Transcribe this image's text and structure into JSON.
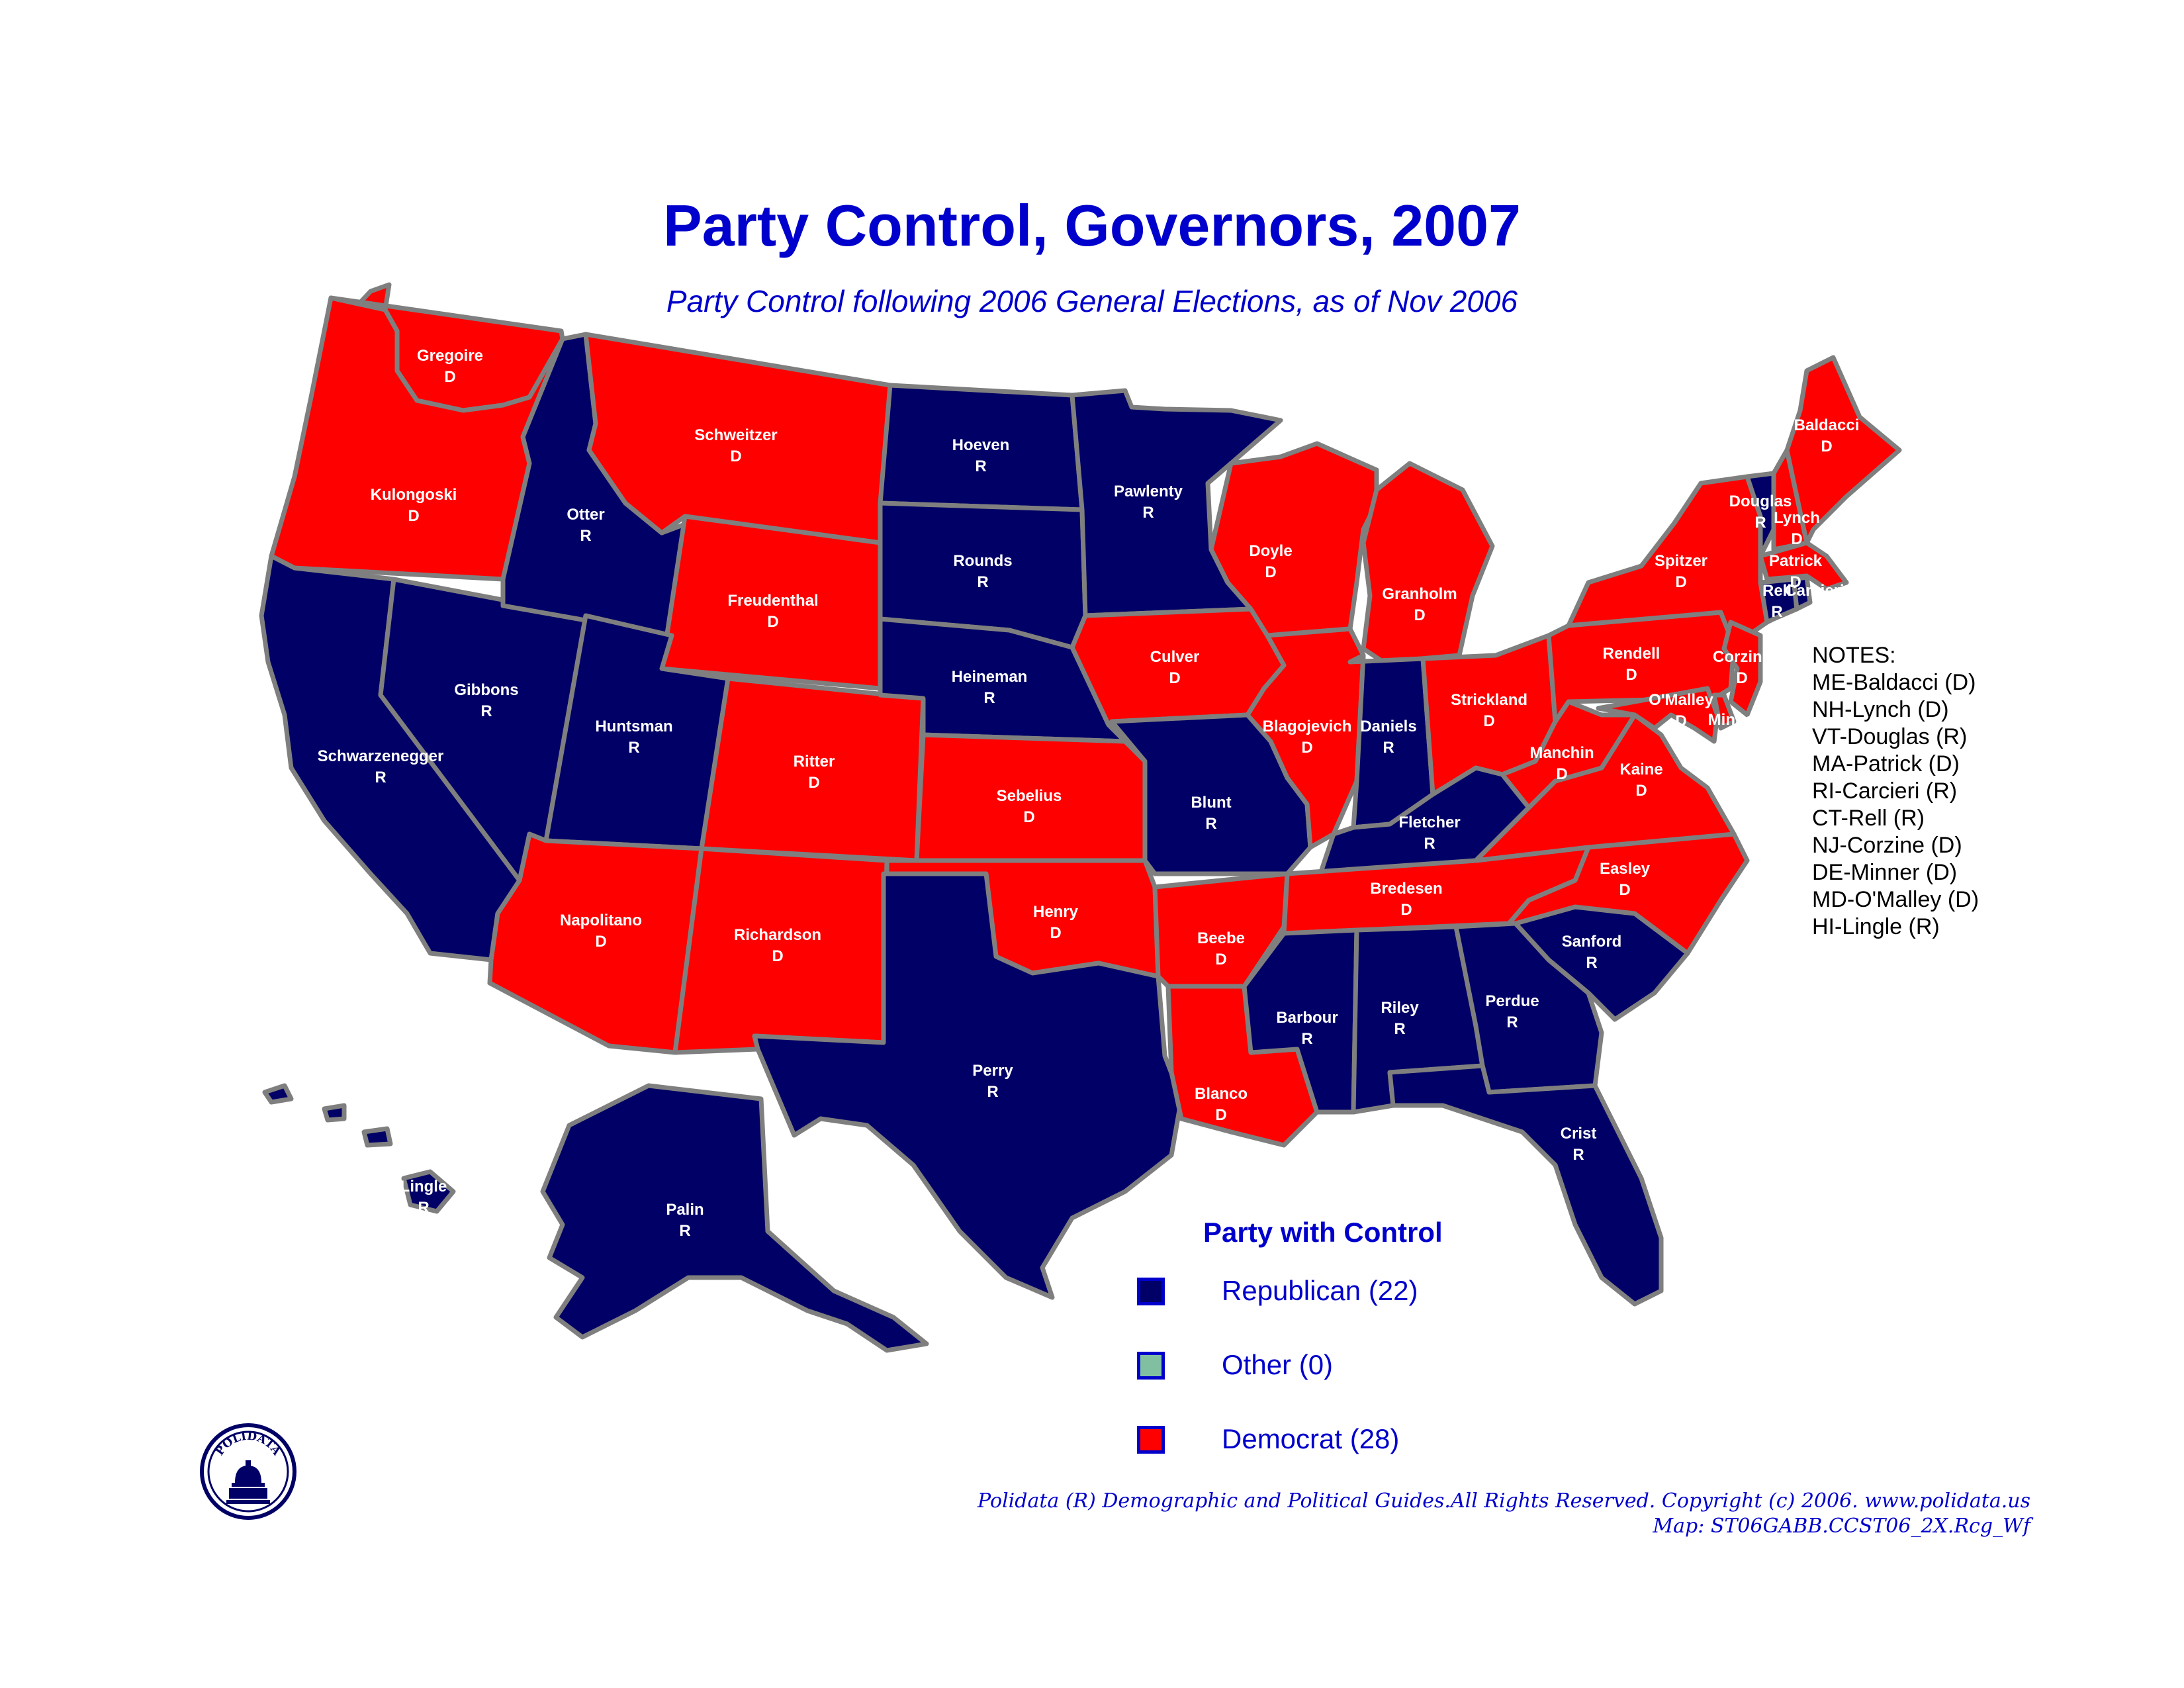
{
  "title": "Party Control, Governors, 2007",
  "subtitle": "Party Control following 2006 General Elections, as of Nov 2006",
  "colors": {
    "republican": "#000066",
    "democrat": "#ff0000",
    "other": "#80c0a0",
    "border": "#7f7f7f",
    "text_accent": "#0000cc"
  },
  "states": [
    {
      "id": "WA",
      "governor": "Gregoire",
      "party": "D"
    },
    {
      "id": "OR",
      "governor": "Kulongoski",
      "party": "D"
    },
    {
      "id": "CA",
      "governor": "Schwarzenegger",
      "party": "R"
    },
    {
      "id": "NV",
      "governor": "Gibbons",
      "party": "R"
    },
    {
      "id": "ID",
      "governor": "Otter",
      "party": "R"
    },
    {
      "id": "MT",
      "governor": "Schweitzer",
      "party": "D"
    },
    {
      "id": "WY",
      "governor": "Freudenthal",
      "party": "D"
    },
    {
      "id": "UT",
      "governor": "Huntsman",
      "party": "R"
    },
    {
      "id": "CO",
      "governor": "Ritter",
      "party": "D"
    },
    {
      "id": "AZ",
      "governor": "Napolitano",
      "party": "D"
    },
    {
      "id": "NM",
      "governor": "Richardson",
      "party": "D"
    },
    {
      "id": "ND",
      "governor": "Hoeven",
      "party": "R"
    },
    {
      "id": "SD",
      "governor": "Rounds",
      "party": "R"
    },
    {
      "id": "NE",
      "governor": "Heineman",
      "party": "R"
    },
    {
      "id": "KS",
      "governor": "Sebelius",
      "party": "D"
    },
    {
      "id": "OK",
      "governor": "Henry",
      "party": "D"
    },
    {
      "id": "TX",
      "governor": "Perry",
      "party": "R"
    },
    {
      "id": "MN",
      "governor": "Pawlenty",
      "party": "R"
    },
    {
      "id": "IA",
      "governor": "Culver",
      "party": "D"
    },
    {
      "id": "MO",
      "governor": "Blunt",
      "party": "R"
    },
    {
      "id": "AR",
      "governor": "Beebe",
      "party": "D"
    },
    {
      "id": "LA",
      "governor": "Blanco",
      "party": "D"
    },
    {
      "id": "WI",
      "governor": "Doyle",
      "party": "D"
    },
    {
      "id": "IL",
      "governor": "Blagojevich",
      "party": "D"
    },
    {
      "id": "MI",
      "governor": "Granholm",
      "party": "D"
    },
    {
      "id": "IN",
      "governor": "Daniels",
      "party": "R"
    },
    {
      "id": "OH",
      "governor": "Strickland",
      "party": "D"
    },
    {
      "id": "KY",
      "governor": "Fletcher",
      "party": "R"
    },
    {
      "id": "TN",
      "governor": "Bredesen",
      "party": "D"
    },
    {
      "id": "MS",
      "governor": "Barbour",
      "party": "R"
    },
    {
      "id": "AL",
      "governor": "Riley",
      "party": "R"
    },
    {
      "id": "GA",
      "governor": "Perdue",
      "party": "R"
    },
    {
      "id": "FL",
      "governor": "Crist",
      "party": "R"
    },
    {
      "id": "SC",
      "governor": "Sanford",
      "party": "R"
    },
    {
      "id": "NC",
      "governor": "Easley",
      "party": "D"
    },
    {
      "id": "VA",
      "governor": "Kaine",
      "party": "D"
    },
    {
      "id": "WV",
      "governor": "Manchin",
      "party": "D"
    },
    {
      "id": "PA",
      "governor": "Rendell",
      "party": "D"
    },
    {
      "id": "NY",
      "governor": "Spitzer",
      "party": "D"
    },
    {
      "id": "VT",
      "governor": "Douglas",
      "party": "R"
    },
    {
      "id": "NH",
      "governor": "Lynch",
      "party": "D"
    },
    {
      "id": "ME",
      "governor": "Baldacci",
      "party": "D"
    },
    {
      "id": "MA",
      "governor": "Patrick",
      "party": "D"
    },
    {
      "id": "CT",
      "governor": "Rell",
      "party": "R"
    },
    {
      "id": "RI",
      "governor": "Carcieri",
      "party": "R"
    },
    {
      "id": "NJ",
      "governor": "Corzine",
      "party": "D"
    },
    {
      "id": "MD",
      "governor": "O'Malley",
      "party": "D"
    },
    {
      "id": "DE",
      "governor": "Minner",
      "party": "D"
    },
    {
      "id": "AK",
      "governor": "Palin",
      "party": "R"
    },
    {
      "id": "HI",
      "governor": "Lingle",
      "party": "R"
    }
  ],
  "notes": {
    "heading": "NOTES:",
    "lines": [
      "ME-Baldacci (D)",
      "NH-Lynch (D)",
      "VT-Douglas (R)",
      "MA-Patrick (D)",
      "RI-Carcieri (R)",
      "CT-Rell (R)",
      "NJ-Corzine (D)",
      "DE-Minner (D)",
      "MD-O'Malley (D)",
      "HI-Lingle (R)"
    ]
  },
  "legend": {
    "title": "Party with Control",
    "items": [
      {
        "label": "Republican (22)",
        "color": "#000066"
      },
      {
        "label": "Other (0)",
        "color": "#80c0a0"
      },
      {
        "label": "Democrat (28)",
        "color": "#ff0000"
      }
    ]
  },
  "footer": {
    "line1": "Polidata (R) Demographic and Political Guides.All Rights Reserved. Copyright (c) 2006.  www.polidata.us",
    "line2": "Map: ST06GABB.CCST06_2X.Rcg_Wf"
  },
  "logo": {
    "text": "POLIDATA",
    "icon": "capitol-dome-icon"
  }
}
